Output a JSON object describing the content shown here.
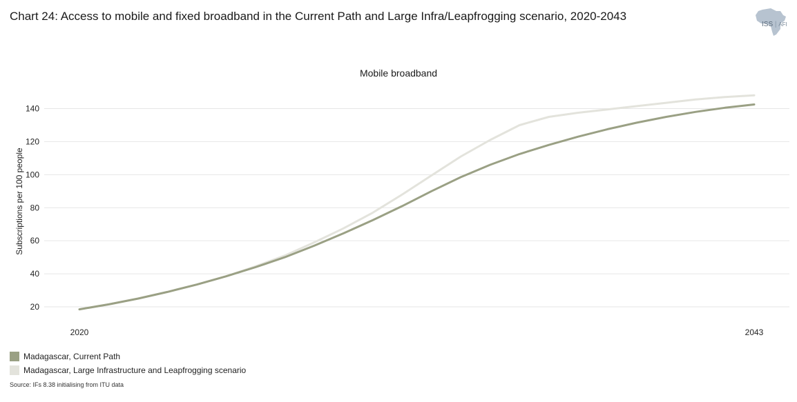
{
  "title": "Chart 24: Access to mobile and fixed broadband in the Current Path and Large Infra/Leapfrogging scenario, 2020-2043",
  "logo": {
    "main": "ISS",
    "sub": "AFI"
  },
  "source": "Source: IFs 8.38 initialising from ITU data",
  "colors": {
    "current_path": "#9aa084",
    "large_infra": "#e3e3dc",
    "grid": "#e6e6e6"
  },
  "chart_data": {
    "type": "line",
    "title": "Mobile broadband",
    "xlabel": "",
    "ylabel": "Subscriptions per 100 people",
    "x": [
      2020,
      2021,
      2022,
      2023,
      2024,
      2025,
      2026,
      2027,
      2028,
      2029,
      2030,
      2031,
      2032,
      2033,
      2034,
      2035,
      2036,
      2037,
      2038,
      2039,
      2040,
      2041,
      2042,
      2043
    ],
    "x_tick_labels": [
      "2020",
      "2043"
    ],
    "x_tick_values": [
      2020,
      2043
    ],
    "ylim": [
      15,
      150
    ],
    "yticks": [
      20,
      40,
      60,
      80,
      100,
      120,
      140
    ],
    "grid": true,
    "legend_position": "bottom-left",
    "series": [
      {
        "name": "Madagascar, Current Path",
        "color": "#9aa084",
        "values": [
          18.5,
          21.5,
          25,
          29,
          33.5,
          38.5,
          44,
          50,
          57,
          64.5,
          72.5,
          81,
          90,
          98.5,
          106,
          112.5,
          118,
          123,
          127.5,
          131.5,
          135,
          138,
          140.5,
          142.5
        ]
      },
      {
        "name": "Madagascar, Large Infrastructure and Leapfrogging scenario",
        "color": "#e3e3dc",
        "values": [
          18.5,
          21.5,
          25,
          29,
          33.5,
          38.5,
          44.5,
          51,
          59,
          67.5,
          77,
          88,
          99.5,
          111,
          121,
          130,
          135,
          137.5,
          139.5,
          141.5,
          143.5,
          145.5,
          147,
          148
        ]
      }
    ]
  }
}
